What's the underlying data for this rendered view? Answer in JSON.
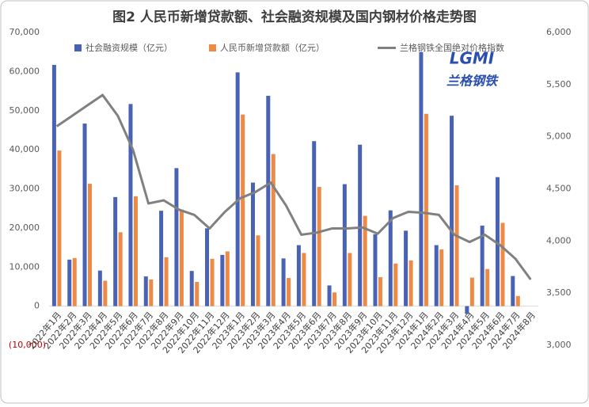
{
  "chart_data": {
    "type": "bar",
    "title": "图2 人民币新增贷款额、社会融资规模及国内钢材价格走势图",
    "logo": {
      "abbr": "LGMI",
      "name": "兰格钢铁"
    },
    "categories": [
      "2022年1月",
      "2022年2月",
      "2022年3月",
      "2022年4月",
      "2022年5月",
      "2022年6月",
      "2022年7月",
      "2022年8月",
      "2022年9月",
      "2022年10月",
      "2022年11月",
      "2022年12月",
      "2023年1月",
      "2023年2月",
      "2023年3月",
      "2023年4月",
      "2023年5月",
      "2023年6月",
      "2023年7月",
      "2023年8月",
      "2023年9月",
      "2023年10月",
      "2023年11月",
      "2023年12月",
      "2024年1月",
      "2024年2月",
      "2024年3月",
      "2024年4月",
      "2024年5月",
      "2024年6月",
      "2024年7月",
      "2024年8月"
    ],
    "series": [
      {
        "name": "社会融资规模（亿元）",
        "type": "bar",
        "color": "#4a62b4",
        "values": [
          61700,
          11900,
          46700,
          9100,
          27900,
          51700,
          7600,
          24400,
          35300,
          9000,
          19900,
          13100,
          59800,
          31600,
          53800,
          12200,
          15600,
          42200,
          5300,
          31200,
          41300,
          18400,
          24500,
          19300,
          65000,
          15600,
          48700,
          -2000,
          20600,
          33000,
          7700,
          null
        ]
      },
      {
        "name": "人民币新增贷款额（亿元）",
        "type": "bar",
        "color": "#ed8a45",
        "values": [
          39800,
          12300,
          31300,
          6500,
          18900,
          28100,
          6800,
          12500,
          24700,
          6200,
          12100,
          14000,
          49000,
          18100,
          38900,
          7200,
          13600,
          30500,
          3500,
          13600,
          23100,
          7400,
          10900,
          11700,
          49200,
          14500,
          30900,
          7300,
          9500,
          21300,
          2600,
          null
        ]
      },
      {
        "name": "兰格钢铁全国绝对价格指数",
        "type": "line",
        "axis": "y2",
        "color": "#808080",
        "values": [
          5100,
          5200,
          5300,
          5400,
          5200,
          4870,
          4360,
          4390,
          4300,
          4250,
          4120,
          4280,
          4410,
          4470,
          4560,
          4340,
          4060,
          4080,
          4120,
          4120,
          4130,
          4070,
          4220,
          4280,
          4270,
          4250,
          4060,
          3990,
          4060,
          3960,
          3830,
          3630
        ]
      }
    ],
    "ylim": [
      -10000,
      70000
    ],
    "yticks": [
      {
        "value": -10000,
        "label": "(10,000)"
      },
      0,
      {
        "value": 10000,
        "label": "10,000"
      },
      {
        "value": 20000,
        "label": "20,000"
      },
      {
        "value": 30000,
        "label": "30,000"
      },
      {
        "value": 40000,
        "label": "40,000"
      },
      {
        "value": 50000,
        "label": "50,000"
      },
      {
        "value": 60000,
        "label": "60,000"
      },
      {
        "value": 70000,
        "label": "70,000"
      }
    ],
    "y2lim": [
      3000,
      6000
    ],
    "y2ticks": [
      {
        "value": 3000,
        "label": "3,000"
      },
      {
        "value": 3500,
        "label": "3,500"
      },
      {
        "value": 4000,
        "label": "4,000"
      },
      {
        "value": 4500,
        "label": "4,500"
      },
      {
        "value": 5000,
        "label": "5,000"
      },
      {
        "value": 5500,
        "label": "5,500"
      },
      {
        "value": 6000,
        "label": "6,000"
      }
    ],
    "negative_label_color": "#c00000",
    "grid": false,
    "legend": "top"
  }
}
